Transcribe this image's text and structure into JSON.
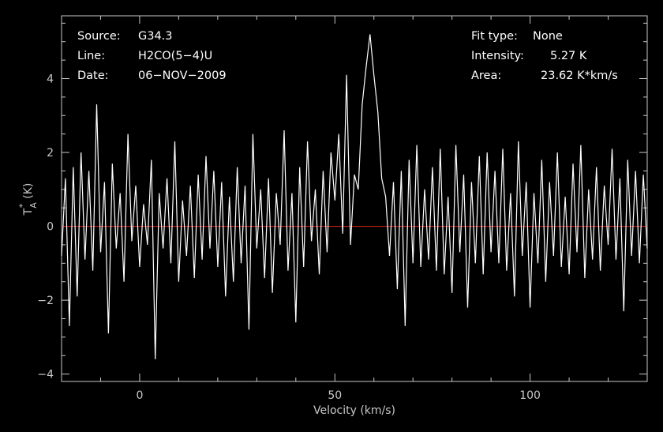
{
  "chart_data": {
    "type": "line",
    "xlabel": "Velocity (km/s)",
    "ylabel_main": "T",
    "ylabel_sup": "*",
    "ylabel_sub": "A",
    "ylabel_unit": "(K)",
    "xlim": [
      -20,
      130
    ],
    "ylim": [
      -4.2,
      5.7
    ],
    "xticks": [
      0,
      50,
      100
    ],
    "yticks": [
      -4,
      -2,
      0,
      2,
      4
    ],
    "grid": false,
    "legend": "none",
    "annotations": {
      "source_label": "Source:",
      "source_value": "G34.3",
      "line_label": "Line:",
      "line_value": "H2CO(5−4)U",
      "date_label": "Date:",
      "date_value": "06−NOV−2009",
      "fit_label": "Fit type:",
      "fit_value": "None",
      "intensity_label": "Intensity:",
      "intensity_value": "5.27 K",
      "area_label": "Area:",
      "area_value": "23.62 K*km/s"
    },
    "baseline": {
      "y": 0,
      "color": "#c0201a"
    },
    "series": [
      {
        "color": "#ffffff",
        "x": [
          -20,
          -19,
          -18,
          -17,
          -16,
          -15,
          -14,
          -13,
          -12,
          -11,
          -10,
          -9,
          -8,
          -7,
          -6,
          -5,
          -4,
          -3,
          -2,
          -1,
          0,
          1,
          2,
          3,
          4,
          5,
          6,
          7,
          8,
          9,
          10,
          11,
          12,
          13,
          14,
          15,
          16,
          17,
          18,
          19,
          20,
          21,
          22,
          23,
          24,
          25,
          26,
          27,
          28,
          29,
          30,
          31,
          32,
          33,
          34,
          35,
          36,
          37,
          38,
          39,
          40,
          41,
          42,
          43,
          44,
          45,
          46,
          47,
          48,
          49,
          50,
          51,
          52,
          53,
          54,
          55,
          56,
          57,
          58,
          59,
          60,
          61,
          62,
          63,
          64,
          65,
          66,
          67,
          68,
          69,
          70,
          71,
          72,
          73,
          74,
          75,
          76,
          77,
          78,
          79,
          80,
          81,
          82,
          83,
          84,
          85,
          86,
          87,
          88,
          89,
          90,
          91,
          92,
          93,
          94,
          95,
          96,
          97,
          98,
          99,
          100,
          101,
          102,
          103,
          104,
          105,
          106,
          107,
          108,
          109,
          110,
          111,
          112,
          113,
          114,
          115,
          116,
          117,
          118,
          119,
          120,
          121,
          122,
          123,
          124,
          125,
          126,
          127,
          128,
          129,
          130
        ],
        "values": [
          -0.8,
          1.3,
          -2.7,
          1.6,
          -1.9,
          2.0,
          -0.9,
          1.5,
          -1.2,
          3.3,
          -0.7,
          1.2,
          -2.9,
          1.7,
          -0.6,
          0.9,
          -1.5,
          2.5,
          -0.4,
          1.1,
          -1.1,
          0.6,
          -0.5,
          1.8,
          -3.6,
          0.9,
          -0.6,
          1.3,
          -1.0,
          2.3,
          -1.5,
          0.7,
          -0.8,
          1.1,
          -1.4,
          1.4,
          -0.9,
          1.9,
          -0.6,
          1.5,
          -1.1,
          1.2,
          -1.9,
          0.8,
          -1.5,
          1.6,
          -1.0,
          1.1,
          -2.8,
          2.5,
          -0.6,
          1.0,
          -1.4,
          1.3,
          -1.8,
          0.9,
          -0.5,
          2.6,
          -1.2,
          0.9,
          -2.6,
          1.6,
          -1.1,
          2.3,
          -0.4,
          1.0,
          -1.3,
          1.5,
          -0.7,
          2.0,
          0.7,
          2.5,
          -0.2,
          4.1,
          -0.5,
          1.4,
          1.0,
          3.3,
          4.3,
          5.2,
          4.1,
          3.1,
          1.3,
          0.8,
          -0.8,
          1.2,
          -1.7,
          1.5,
          -2.7,
          1.8,
          -1.0,
          2.2,
          -1.1,
          1.0,
          -0.9,
          1.6,
          -1.2,
          2.1,
          -1.3,
          0.8,
          -1.8,
          2.2,
          -0.7,
          1.4,
          -2.2,
          1.2,
          -1.0,
          1.9,
          -1.3,
          2.0,
          -0.7,
          1.5,
          -1.0,
          2.1,
          -1.2,
          0.9,
          -1.9,
          2.3,
          -0.8,
          1.2,
          -2.2,
          0.9,
          -1.0,
          1.8,
          -1.5,
          1.2,
          -0.8,
          2.0,
          -1.1,
          0.8,
          -1.3,
          1.7,
          -0.7,
          2.2,
          -1.4,
          1.0,
          -0.9,
          1.6,
          -1.2,
          1.1,
          -0.5,
          2.1,
          -0.9,
          1.3,
          -2.3,
          1.8,
          -0.8,
          1.5,
          -1.0,
          1.4,
          -0.6
        ]
      }
    ]
  }
}
